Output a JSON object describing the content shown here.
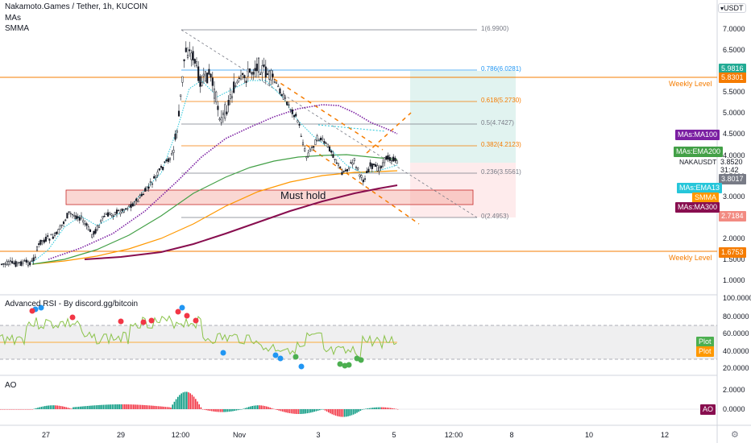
{
  "header": {
    "symbol_line": "Nakamoto.Games / Tether, 1h, KUCOIN",
    "indicator_1": "MAs",
    "indicator_2": "SMMA",
    "currency": "USDT"
  },
  "price_axis": {
    "ticks": [
      "7.0000",
      "6.5000",
      "6.0000",
      "5.5000",
      "5.0000",
      "4.5000",
      "4.0000",
      "3.5000",
      "3.0000",
      "2.5000",
      "2.0000",
      "1.5000",
      "1.0000"
    ],
    "badges": [
      {
        "text": "5.9816",
        "color": "#22ab94"
      },
      {
        "text": "5.8301",
        "color": "#f57c00"
      },
      {
        "text": "3.8520",
        "color": "#ffffff"
      },
      {
        "text": "31:42",
        "color": "#ffffff"
      },
      {
        "text": "3.8017",
        "color": "#787b86"
      },
      {
        "text": "2.7184",
        "color": "#f28b82"
      },
      {
        "text": "1.6753",
        "color": "#f57c00"
      }
    ],
    "symbol_short": "NAKAUSDT"
  },
  "ma_labels": [
    {
      "text": "MAs:MA100",
      "color": "#7b1fa2"
    },
    {
      "text": "MAs:EMA200",
      "color": "#43a047"
    },
    {
      "text": "MAs:EMA13",
      "color": "#26c6da"
    },
    {
      "text": "SMMA",
      "color": "#ff9800"
    },
    {
      "text": "MAs:MA300",
      "color": "#880e4f"
    }
  ],
  "fib_levels": [
    {
      "label": "1(6.9900)",
      "color": "#787b86"
    },
    {
      "label": "0.786(6.0281)",
      "color": "#2196f3"
    },
    {
      "label": "0.618(5.2730)",
      "color": "#f57c00"
    },
    {
      "label": "0.5(4.7427)",
      "color": "#787b86"
    },
    {
      "label": "0.382(4.2123)",
      "color": "#f57c00"
    },
    {
      "label": "0.236(3.5561)",
      "color": "#787b86"
    },
    {
      "label": "0(2.4953)",
      "color": "#787b86"
    }
  ],
  "annotations": {
    "weekly_level_upper": "Weekly Level",
    "weekly_level_lower": "Weekly Level",
    "must_hold": "Must hold"
  },
  "rsi_panel": {
    "title": "Advanced RSI - By discord.gg/bitcoin",
    "ticks": [
      "100.0000",
      "80.0000",
      "60.0000",
      "40.0000",
      "20.0000"
    ],
    "plot_labels": [
      {
        "text": "Plot",
        "color": "#4caf50"
      },
      {
        "text": "Plot",
        "color": "#ff9800"
      }
    ]
  },
  "ao_panel": {
    "title": "AO",
    "ticks": [
      "2.0000",
      "0.0000"
    ],
    "badge": "AO"
  },
  "time_axis": {
    "labels": [
      "27",
      "29",
      "12:00",
      "Nov",
      "3",
      "5",
      "12:00",
      "8",
      "10",
      "12"
    ]
  },
  "colors": {
    "weekly": "#f57c00",
    "accent_red": "#f23645",
    "accent_green": "#089981"
  }
}
